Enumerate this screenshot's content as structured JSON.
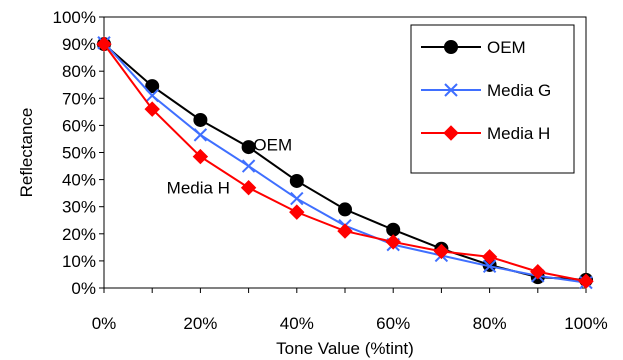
{
  "chart_data": {
    "type": "line",
    "title": "",
    "xlabel": "Tone Value (%tint)",
    "ylabel": "Reflectance",
    "x": [
      0,
      10,
      20,
      30,
      40,
      50,
      60,
      70,
      80,
      90,
      100
    ],
    "xlim": [
      0,
      100
    ],
    "ylim": [
      0,
      100
    ],
    "x_ticks": [
      0,
      20,
      40,
      60,
      80,
      100
    ],
    "x_tick_labels": [
      "0%",
      "20%",
      "40%",
      "60%",
      "80%",
      "100%"
    ],
    "y_ticks": [
      0,
      10,
      20,
      30,
      40,
      50,
      60,
      70,
      80,
      90,
      100
    ],
    "y_tick_labels": [
      "0%",
      "10%",
      "20%",
      "30%",
      "40%",
      "50%",
      "60%",
      "70%",
      "80%",
      "90%",
      "100%"
    ],
    "grid": false,
    "legend_position": "top-right",
    "series": [
      {
        "name": "OEM",
        "color": "#000000",
        "marker": "circle",
        "values": [
          90,
          74.5,
          62,
          52,
          39.5,
          29,
          21.5,
          14.5,
          8.5,
          4,
          3
        ]
      },
      {
        "name": "Media G",
        "color": "#3f6fff",
        "marker": "x",
        "values": [
          90.5,
          71,
          56.5,
          45,
          33,
          23,
          16,
          12,
          8,
          4.5,
          2
        ]
      },
      {
        "name": "Media H",
        "color": "#ff0000",
        "marker": "diamond",
        "values": [
          90,
          66,
          48.5,
          37,
          28,
          21,
          17,
          13.5,
          11.5,
          6,
          2.5
        ]
      }
    ],
    "annotations": [
      {
        "text": "OEM",
        "x": 31,
        "y": 53
      },
      {
        "text": "Media H",
        "x": 13,
        "y": 37
      }
    ]
  }
}
